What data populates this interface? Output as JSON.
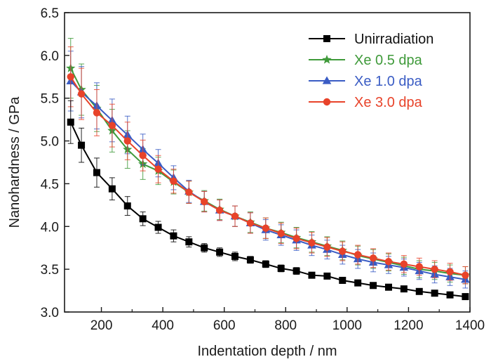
{
  "chart_data": {
    "type": "line",
    "title": "",
    "xlabel": "Indentation depth / nm",
    "ylabel": "Nanohardness / GPa",
    "xlim": [
      80,
      1400
    ],
    "ylim": [
      3.0,
      6.5
    ],
    "xticks": [
      200,
      400,
      600,
      800,
      1000,
      1200,
      1400
    ],
    "yticks": [
      3.0,
      3.5,
      4.0,
      4.5,
      5.0,
      5.5,
      6.0,
      6.5
    ],
    "xtick_labels": [
      "200",
      "400",
      "600",
      "800",
      "1000",
      "1200",
      "1400"
    ],
    "ytick_labels": [
      "3.0",
      "3.5",
      "4.0",
      "4.5",
      "5.0",
      "5.5",
      "6.0",
      "6.5"
    ],
    "grid": false,
    "legend_position": "top-right",
    "x": [
      100,
      135,
      185,
      235,
      285,
      335,
      385,
      435,
      485,
      535,
      585,
      635,
      685,
      735,
      785,
      835,
      885,
      935,
      985,
      1035,
      1085,
      1135,
      1185,
      1235,
      1285,
      1335,
      1385
    ],
    "series": [
      {
        "name": "Unirradiation",
        "color": "#000000",
        "marker": "square",
        "values": [
          5.22,
          4.95,
          4.63,
          4.44,
          4.24,
          4.09,
          3.99,
          3.89,
          3.82,
          3.75,
          3.7,
          3.65,
          3.61,
          3.56,
          3.51,
          3.48,
          3.43,
          3.42,
          3.37,
          3.34,
          3.31,
          3.29,
          3.27,
          3.24,
          3.22,
          3.2,
          3.18
        ],
        "errors": [
          0.25,
          0.2,
          0.17,
          0.13,
          0.11,
          0.08,
          0.07,
          0.07,
          0.06,
          0.05,
          0.05,
          0.05,
          0.04,
          0.04,
          0.04,
          0.04,
          0.03,
          0.03,
          0.03,
          0.03,
          0.03,
          0.03,
          0.03,
          0.03,
          0.03,
          0.03,
          0.03
        ]
      },
      {
        "name": "Xe 0.5 dpa",
        "color": "#3f9a3a",
        "marker": "star",
        "values": [
          5.85,
          5.6,
          5.38,
          5.12,
          4.9,
          4.73,
          4.65,
          4.52,
          4.4,
          4.3,
          4.2,
          4.12,
          4.05,
          3.98,
          3.93,
          3.87,
          3.82,
          3.77,
          3.72,
          3.66,
          3.62,
          3.58,
          3.54,
          3.5,
          3.48,
          3.45,
          3.43
        ]
      },
      {
        "name": "Xe 1.0 dpa",
        "color": "#3a5cc4",
        "marker": "triangle",
        "values": [
          5.7,
          5.57,
          5.41,
          5.24,
          5.07,
          4.9,
          4.74,
          4.57,
          4.41,
          4.29,
          4.19,
          4.12,
          4.04,
          3.96,
          3.9,
          3.84,
          3.78,
          3.73,
          3.67,
          3.62,
          3.58,
          3.55,
          3.52,
          3.48,
          3.44,
          3.41,
          3.38
        ]
      },
      {
        "name": "Xe 3.0 dpa",
        "color": "#e8432a",
        "marker": "circle",
        "values": [
          5.75,
          5.55,
          5.33,
          5.18,
          5.0,
          4.83,
          4.67,
          4.53,
          4.4,
          4.29,
          4.19,
          4.12,
          4.04,
          3.98,
          3.92,
          3.86,
          3.81,
          3.76,
          3.71,
          3.67,
          3.63,
          3.59,
          3.56,
          3.53,
          3.5,
          3.47,
          3.43
        ]
      }
    ],
    "irradiated_errors": [
      0.35,
      0.3,
      0.27,
      0.25,
      0.22,
      0.18,
      0.16,
      0.14,
      0.13,
      0.12,
      0.12,
      0.12,
      0.12,
      0.12,
      0.12,
      0.12,
      0.12,
      0.11,
      0.11,
      0.11,
      0.11,
      0.1,
      0.1,
      0.1,
      0.1,
      0.1,
      0.1
    ]
  }
}
